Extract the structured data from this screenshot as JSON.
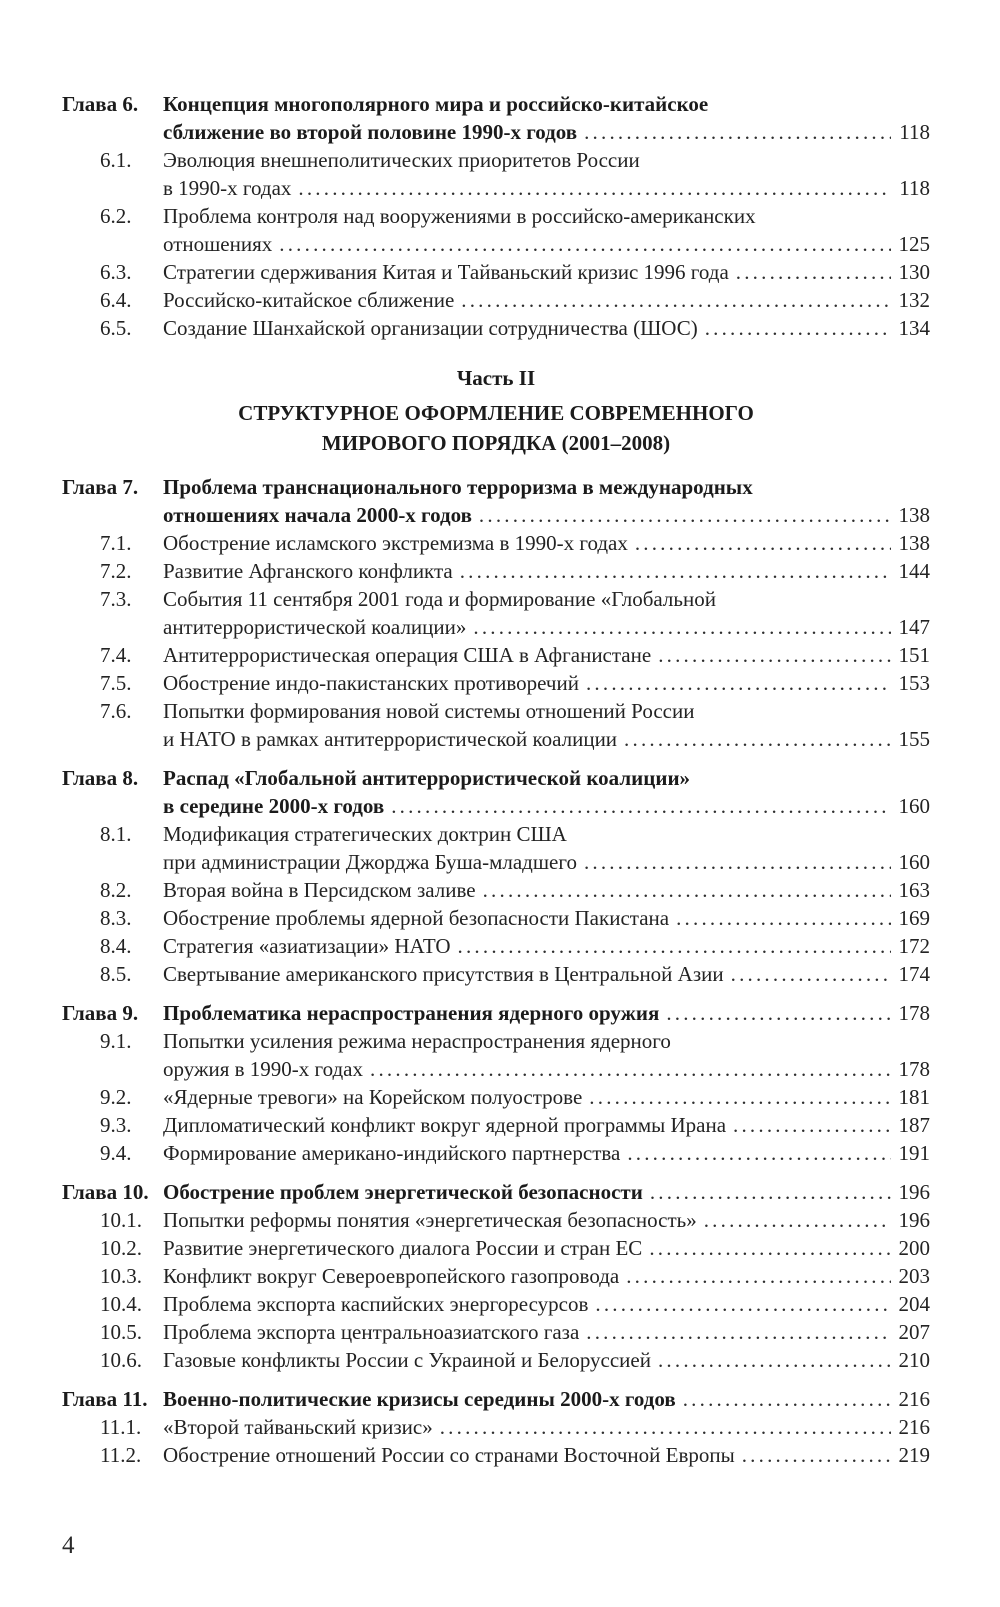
{
  "toc": {
    "page_number": "4",
    "items": [
      {
        "type": "chapter",
        "label": "Глава 6.",
        "lines": [
          "Концепция многополярного мира и российско-китайское",
          "сближение во второй половине 1990-х годов"
        ],
        "page": "118"
      },
      {
        "type": "sub",
        "label": "6.1.",
        "lines": [
          "Эволюция внешнеполитических приоритетов России",
          "в 1990-х годах"
        ],
        "page": "118"
      },
      {
        "type": "sub",
        "label": "6.2.",
        "lines": [
          "Проблема контроля над вооружениями в российско-американских",
          "отношениях"
        ],
        "page": "125"
      },
      {
        "type": "sub",
        "label": "6.3.",
        "lines": [
          "Стратегии сдерживания Китая и Тайваньский кризис 1996 года"
        ],
        "page": "130"
      },
      {
        "type": "sub",
        "label": "6.4.",
        "lines": [
          "Российско-китайское сближение"
        ],
        "page": "132"
      },
      {
        "type": "sub",
        "label": "6.5.",
        "lines": [
          "Создание Шанхайской организации сотрудничества (ШОС)"
        ],
        "page": "134"
      },
      {
        "type": "part",
        "kicker": "Часть II",
        "title_lines": [
          "СТРУКТУРНОЕ ОФОРМЛЕНИЕ СОВРЕМЕННОГО",
          "МИРОВОГО ПОРЯДКА (2001–2008)"
        ]
      },
      {
        "type": "chapter",
        "label": "Глава 7.",
        "lines": [
          "Проблема транснационального терроризма в международных",
          "отношениях начала 2000-х годов"
        ],
        "page": "138"
      },
      {
        "type": "sub",
        "label": "7.1.",
        "lines": [
          "Обострение исламского экстремизма в 1990-х годах"
        ],
        "page": "138"
      },
      {
        "type": "sub",
        "label": "7.2.",
        "lines": [
          "Развитие Афганского конфликта"
        ],
        "page": "144"
      },
      {
        "type": "sub",
        "label": "7.3.",
        "lines": [
          "События 11 сентября 2001 года и формирование «Глобальной",
          "антитеррористической коалиции»"
        ],
        "page": "147"
      },
      {
        "type": "sub",
        "label": "7.4.",
        "lines": [
          "Антитеррористическая операция США в Афганистане"
        ],
        "page": "151"
      },
      {
        "type": "sub",
        "label": "7.5.",
        "lines": [
          "Обострение индо-пакистанских противоречий"
        ],
        "page": "153"
      },
      {
        "type": "sub",
        "label": "7.6.",
        "lines": [
          "Попытки формирования новой системы отношений России",
          "и НАТО в рамках антитеррористической коалиции"
        ],
        "page": "155"
      },
      {
        "type": "chapter",
        "label": "Глава 8.",
        "lines": [
          "Распад «Глобальной антитеррористической коалиции»",
          "в середине 2000-х годов"
        ],
        "page": "160"
      },
      {
        "type": "sub",
        "label": "8.1.",
        "lines": [
          "Модификация стратегических доктрин США",
          "при администрации Джорджа Буша-младшего"
        ],
        "page": "160"
      },
      {
        "type": "sub",
        "label": "8.2.",
        "lines": [
          "Вторая война в Персидском заливе"
        ],
        "page": "163"
      },
      {
        "type": "sub",
        "label": "8.3.",
        "lines": [
          "Обострение проблемы ядерной безопасности Пакистана"
        ],
        "page": "169"
      },
      {
        "type": "sub",
        "label": "8.4.",
        "lines": [
          "Стратегия «азиатизации» НАТО"
        ],
        "page": "172"
      },
      {
        "type": "sub",
        "label": "8.5.",
        "lines": [
          "Свертывание американского присутствия в Центральной Азии"
        ],
        "page": "174"
      },
      {
        "type": "chapter",
        "label": "Глава 9.",
        "lines": [
          "Проблематика нераспространения ядерного оружия"
        ],
        "page": "178"
      },
      {
        "type": "sub",
        "label": "9.1.",
        "lines": [
          "Попытки усиления режима нераспространения ядерного",
          "оружия в 1990-х годах"
        ],
        "page": "178"
      },
      {
        "type": "sub",
        "label": "9.2.",
        "lines": [
          "«Ядерные тревоги» на Корейском полуострове"
        ],
        "page": "181"
      },
      {
        "type": "sub",
        "label": "9.3.",
        "lines": [
          "Дипломатический конфликт вокруг ядерной программы Ирана"
        ],
        "page": "187"
      },
      {
        "type": "sub",
        "label": "9.4.",
        "lines": [
          "Формирование американо-индийского партнерства"
        ],
        "page": "191"
      },
      {
        "type": "chapter",
        "label": "Глава 10.",
        "lines": [
          "Обострение проблем энергетической безопасности"
        ],
        "page": "196"
      },
      {
        "type": "sub",
        "label": "10.1.",
        "lines": [
          "Попытки реформы понятия «энергетическая безопасность»"
        ],
        "page": "196"
      },
      {
        "type": "sub",
        "label": "10.2.",
        "lines": [
          "Развитие энергетического диалога России и стран ЕС"
        ],
        "page": "200"
      },
      {
        "type": "sub",
        "label": "10.3.",
        "lines": [
          "Конфликт вокруг Североевропейского газопровода"
        ],
        "page": "203"
      },
      {
        "type": "sub",
        "label": "10.4.",
        "lines": [
          "Проблема экспорта каспийских энергоресурсов"
        ],
        "page": "204"
      },
      {
        "type": "sub",
        "label": "10.5.",
        "lines": [
          "Проблема экспорта центральноазиатского газа"
        ],
        "page": "207"
      },
      {
        "type": "sub",
        "label": "10.6.",
        "lines": [
          "Газовые конфликты России с Украиной и Белоруссией"
        ],
        "page": "210"
      },
      {
        "type": "chapter",
        "label": "Глава 11.",
        "lines": [
          "Военно-политические кризисы середины 2000-х годов"
        ],
        "page": "216"
      },
      {
        "type": "sub",
        "label": "11.1.",
        "lines": [
          "«Второй тайваньский кризис»"
        ],
        "page": "216"
      },
      {
        "type": "sub",
        "label": "11.2.",
        "lines": [
          "Обострение отношений России со странами Восточной Европы"
        ],
        "page": "219"
      }
    ]
  }
}
